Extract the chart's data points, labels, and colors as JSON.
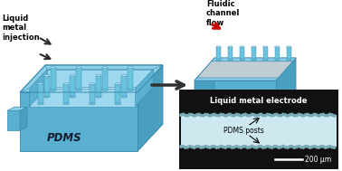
{
  "bg_color": "#ffffff",
  "blue_top": "#8ecfe8",
  "blue_mid": "#5ab0d0",
  "blue_dark": "#3a8ab0",
  "blue_inner": "#9dd8ee",
  "blue_channel": "#b8e0f0",
  "blue_wall": "#4a9ec0",
  "blue_rim": "#70c0dc",
  "post_body": "#6ac4de",
  "post_top": "#b0dff0",
  "lm_gray_top": "#c0ced4",
  "lm_gray_mid": "#a8bcc4",
  "arrow_dark": "#303030",
  "red_arrow": "#cc0000",
  "label_liquid_metal_inj": "Liquid\nmetal\ninjection",
  "label_pdms": "PDMS",
  "label_fluidic": "Fluidic\nchannel\nflow",
  "label_lm_electrode": "Liquid\nmetal\nelectrode",
  "label_lm_electrode2": "Liquid metal electrode",
  "label_pdms_posts": "PDMS posts",
  "label_scale": "200 μm",
  "micro_bg": "#111111",
  "micro_channel_color": "#cde8ee",
  "dot_color": "#7aacb8"
}
